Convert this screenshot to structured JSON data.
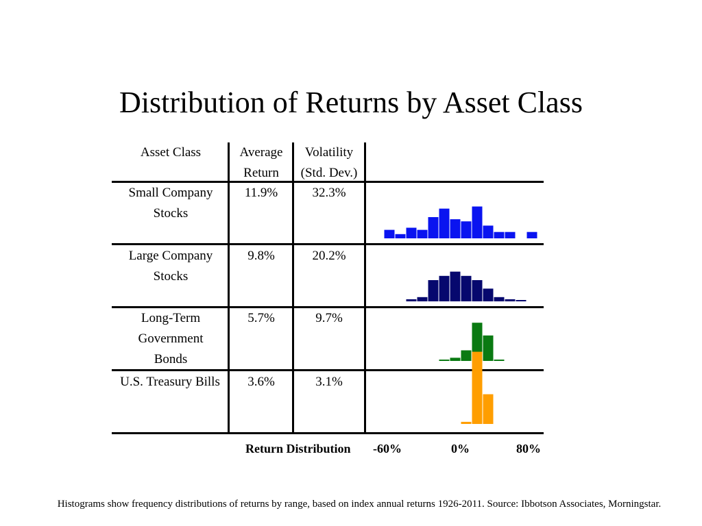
{
  "title": "Distribution of Returns by Asset Class",
  "headers": {
    "asset_class": "Asset Class",
    "avg_return_1": "Average",
    "avg_return_2": "Return",
    "volatility_1": "Volatility",
    "volatility_2": "(Std. Dev.)"
  },
  "rows": [
    {
      "name_lines": [
        "Small Company",
        "Stocks"
      ],
      "avg": "11.9%",
      "vol": "32.3%"
    },
    {
      "name_lines": [
        "Large Company",
        "Stocks"
      ],
      "avg": "9.8%",
      "vol": "20.2%"
    },
    {
      "name_lines": [
        "Long-Term",
        "Government",
        "Bonds"
      ],
      "avg": "5.7%",
      "vol": "9.7%"
    },
    {
      "name_lines": [
        "U.S. Treasury Bills"
      ],
      "avg": "3.6%",
      "vol": "3.1%"
    }
  ],
  "axis": {
    "label": "Return Distribution",
    "tick_left": "-60%",
    "tick_mid": "0%",
    "tick_right": "80%"
  },
  "footnote": "Histograms show frequency distributions of returns by range, based on index annual returns 1926-2011.  Source: Ibbotson Associates, Morningstar.",
  "chart_data": {
    "type": "bar",
    "title": "",
    "xlabel": "Return Distribution",
    "xlim": [
      -60,
      80
    ],
    "bin_width": 10,
    "categories": [
      "-60%",
      "-50%",
      "-40%",
      "-30%",
      "-20%",
      "-10%",
      "0%",
      "10%",
      "20%",
      "30%",
      "40%",
      "50%",
      "60%",
      "70%",
      "80%"
    ],
    "series": [
      {
        "name": "Small Company Stocks",
        "color": "#0a14f0",
        "values": [
          4,
          2,
          5,
          4,
          10,
          14,
          9,
          8,
          15,
          6,
          3,
          3,
          0,
          3,
          0
        ]
      },
      {
        "name": "Large Company Stocks",
        "color": "#06086e",
        "values": [
          0,
          0,
          1,
          2,
          10,
          12,
          14,
          12,
          10,
          6,
          2,
          1,
          0.3,
          0,
          0
        ]
      },
      {
        "name": "Long-Term Government Bonds",
        "color": "#0a7a12",
        "values": [
          0,
          0,
          0,
          0,
          0,
          0.5,
          1.5,
          5,
          18,
          12,
          0.5,
          0,
          0,
          0,
          0
        ]
      },
      {
        "name": "U.S. Treasury Bills",
        "color": "#ff9e00",
        "values": [
          0,
          0,
          0,
          0,
          0,
          0,
          0,
          1,
          34,
          14,
          0,
          0,
          0,
          0,
          0
        ]
      }
    ]
  }
}
